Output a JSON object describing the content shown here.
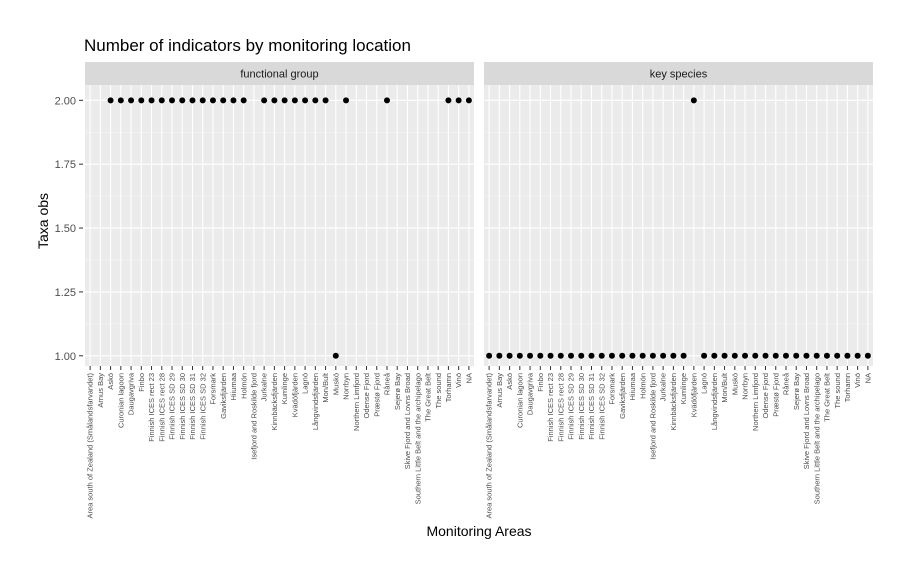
{
  "chart_data": {
    "type": "scatter",
    "title": "Number of indicators by monitoring location",
    "xlabel": "Monitoring Areas",
    "ylabel": "Taxa obs",
    "ylim": [
      0.96,
      2.06
    ],
    "y_ticks": [
      "1.00",
      "1.25",
      "1.50",
      "1.75",
      "2.00"
    ],
    "grid": true,
    "point_color": "#000000",
    "panel_background": "#ebebeb",
    "strip_background": "#d9d9d9",
    "facets": [
      {
        "label": "functional group",
        "categories": [
          "Area south of Zealand (Smålandsfarvandet)",
          "Arnus Bay",
          "Askö",
          "Curonian lagoon",
          "Daugavgriva",
          "Finbo",
          "Finnish ICES rect 23",
          "Finnish ICES rect 28",
          "Finnish ICES SD 29",
          "Finnish ICES SD 30",
          "Finnish ICES SD 31",
          "Finnish ICES SD 32",
          "Forsmark",
          "Gaviksfjärden",
          "Hiiumaa",
          "Holmön",
          "Isefjord and Roskilde fjord",
          "Jurkalne",
          "Kinnbäcksfjärden",
          "Kumlinge",
          "Kvädöfjärden",
          "Lagnö",
          "Långvindsfjärden",
          "Mon/Bult",
          "Muskö",
          "Norrbyn",
          "Northern Limfjord",
          "Odense Fjord",
          "Præstø Fjord",
          "Råneå",
          "Sejerø Bay",
          "Skive Fjord and Lovns Broad",
          "Southern Little Belt and the archipelago",
          "The Great Belt",
          "The sound",
          "Torhamn",
          "Vinö",
          "NA"
        ],
        "points": [
          {
            "x": "Askö",
            "y": 2
          },
          {
            "x": "Curonian lagoon",
            "y": 2
          },
          {
            "x": "Daugavgriva",
            "y": 2
          },
          {
            "x": "Finbo",
            "y": 2
          },
          {
            "x": "Finnish ICES rect 23",
            "y": 2
          },
          {
            "x": "Finnish ICES rect 28",
            "y": 2
          },
          {
            "x": "Finnish ICES SD 29",
            "y": 2
          },
          {
            "x": "Finnish ICES SD 30",
            "y": 2
          },
          {
            "x": "Finnish ICES SD 31",
            "y": 2
          },
          {
            "x": "Finnish ICES SD 32",
            "y": 2
          },
          {
            "x": "Forsmark",
            "y": 2
          },
          {
            "x": "Gaviksfjärden",
            "y": 2
          },
          {
            "x": "Hiiumaa",
            "y": 2
          },
          {
            "x": "Holmön",
            "y": 2
          },
          {
            "x": "Jurkalne",
            "y": 2
          },
          {
            "x": "Kinnbäcksfjärden",
            "y": 2
          },
          {
            "x": "Kumlinge",
            "y": 2
          },
          {
            "x": "Kvädöfjärden",
            "y": 2
          },
          {
            "x": "Lagnö",
            "y": 2
          },
          {
            "x": "Långvindsfjärden",
            "y": 2
          },
          {
            "x": "Mon/Bult",
            "y": 2
          },
          {
            "x": "Muskö",
            "y": 1
          },
          {
            "x": "Norrbyn",
            "y": 2
          },
          {
            "x": "Råneå",
            "y": 2
          },
          {
            "x": "Torhamn",
            "y": 2
          },
          {
            "x": "Vinö",
            "y": 2
          },
          {
            "x": "NA",
            "y": 2
          }
        ]
      },
      {
        "label": "key species",
        "categories": [
          "Area south of Zealand (Smålandsfarvandet)",
          "Arnus Bay",
          "Askö",
          "Curonian lagoon",
          "Daugavgriva",
          "Finbo",
          "Finnish ICES rect 23",
          "Finnish ICES rect 28",
          "Finnish ICES SD 29",
          "Finnish ICES SD 30",
          "Finnish ICES SD 31",
          "Finnish ICES SD 32",
          "Forsmark",
          "Gaviksfjärden",
          "Hiiumaa",
          "Holmön",
          "Isefjord and Roskilde fjord",
          "Jurkalne",
          "Kinnbäcksfjärden",
          "Kumlinge",
          "Kvädöfjärden",
          "Lagnö",
          "Långvindsfjärden",
          "Mon/Bult",
          "Muskö",
          "Norrbyn",
          "Northern Limfjord",
          "Odense Fjord",
          "Præstø Fjord",
          "Råneå",
          "Sejerø Bay",
          "Skive Fjord and Lovns Broad",
          "Southern Little Belt and the archipelago",
          "The Great Belt",
          "The sound",
          "Torhamn",
          "Vinö",
          "NA"
        ],
        "points": [
          {
            "x": "Area south of Zealand (Smålandsfarvandet)",
            "y": 1
          },
          {
            "x": "Arnus Bay",
            "y": 1
          },
          {
            "x": "Askö",
            "y": 1
          },
          {
            "x": "Curonian lagoon",
            "y": 1
          },
          {
            "x": "Daugavgriva",
            "y": 1
          },
          {
            "x": "Finbo",
            "y": 1
          },
          {
            "x": "Finnish ICES rect 23",
            "y": 1
          },
          {
            "x": "Finnish ICES rect 28",
            "y": 1
          },
          {
            "x": "Finnish ICES SD 29",
            "y": 1
          },
          {
            "x": "Finnish ICES SD 30",
            "y": 1
          },
          {
            "x": "Finnish ICES SD 31",
            "y": 1
          },
          {
            "x": "Finnish ICES SD 32",
            "y": 1
          },
          {
            "x": "Forsmark",
            "y": 1
          },
          {
            "x": "Gaviksfjärden",
            "y": 1
          },
          {
            "x": "Hiiumaa",
            "y": 1
          },
          {
            "x": "Holmön",
            "y": 1
          },
          {
            "x": "Isefjord and Roskilde fjord",
            "y": 1
          },
          {
            "x": "Jurkalne",
            "y": 1
          },
          {
            "x": "Kinnbäcksfjärden",
            "y": 1
          },
          {
            "x": "Kumlinge",
            "y": 1
          },
          {
            "x": "Kvädöfjärden",
            "y": 2
          },
          {
            "x": "Lagnö",
            "y": 1
          },
          {
            "x": "Långvindsfjärden",
            "y": 1
          },
          {
            "x": "Mon/Bult",
            "y": 1
          },
          {
            "x": "Muskö",
            "y": 1
          },
          {
            "x": "Norrbyn",
            "y": 1
          },
          {
            "x": "Northern Limfjord",
            "y": 1
          },
          {
            "x": "Odense Fjord",
            "y": 1
          },
          {
            "x": "Præstø Fjord",
            "y": 1
          },
          {
            "x": "Råneå",
            "y": 1
          },
          {
            "x": "Sejerø Bay",
            "y": 1
          },
          {
            "x": "Skive Fjord and Lovns Broad",
            "y": 1
          },
          {
            "x": "Southern Little Belt and the archipelago",
            "y": 1
          },
          {
            "x": "The Great Belt",
            "y": 1
          },
          {
            "x": "The sound",
            "y": 1
          },
          {
            "x": "Torhamn",
            "y": 1
          },
          {
            "x": "Vinö",
            "y": 1
          },
          {
            "x": "NA",
            "y": 1
          }
        ]
      }
    ]
  }
}
